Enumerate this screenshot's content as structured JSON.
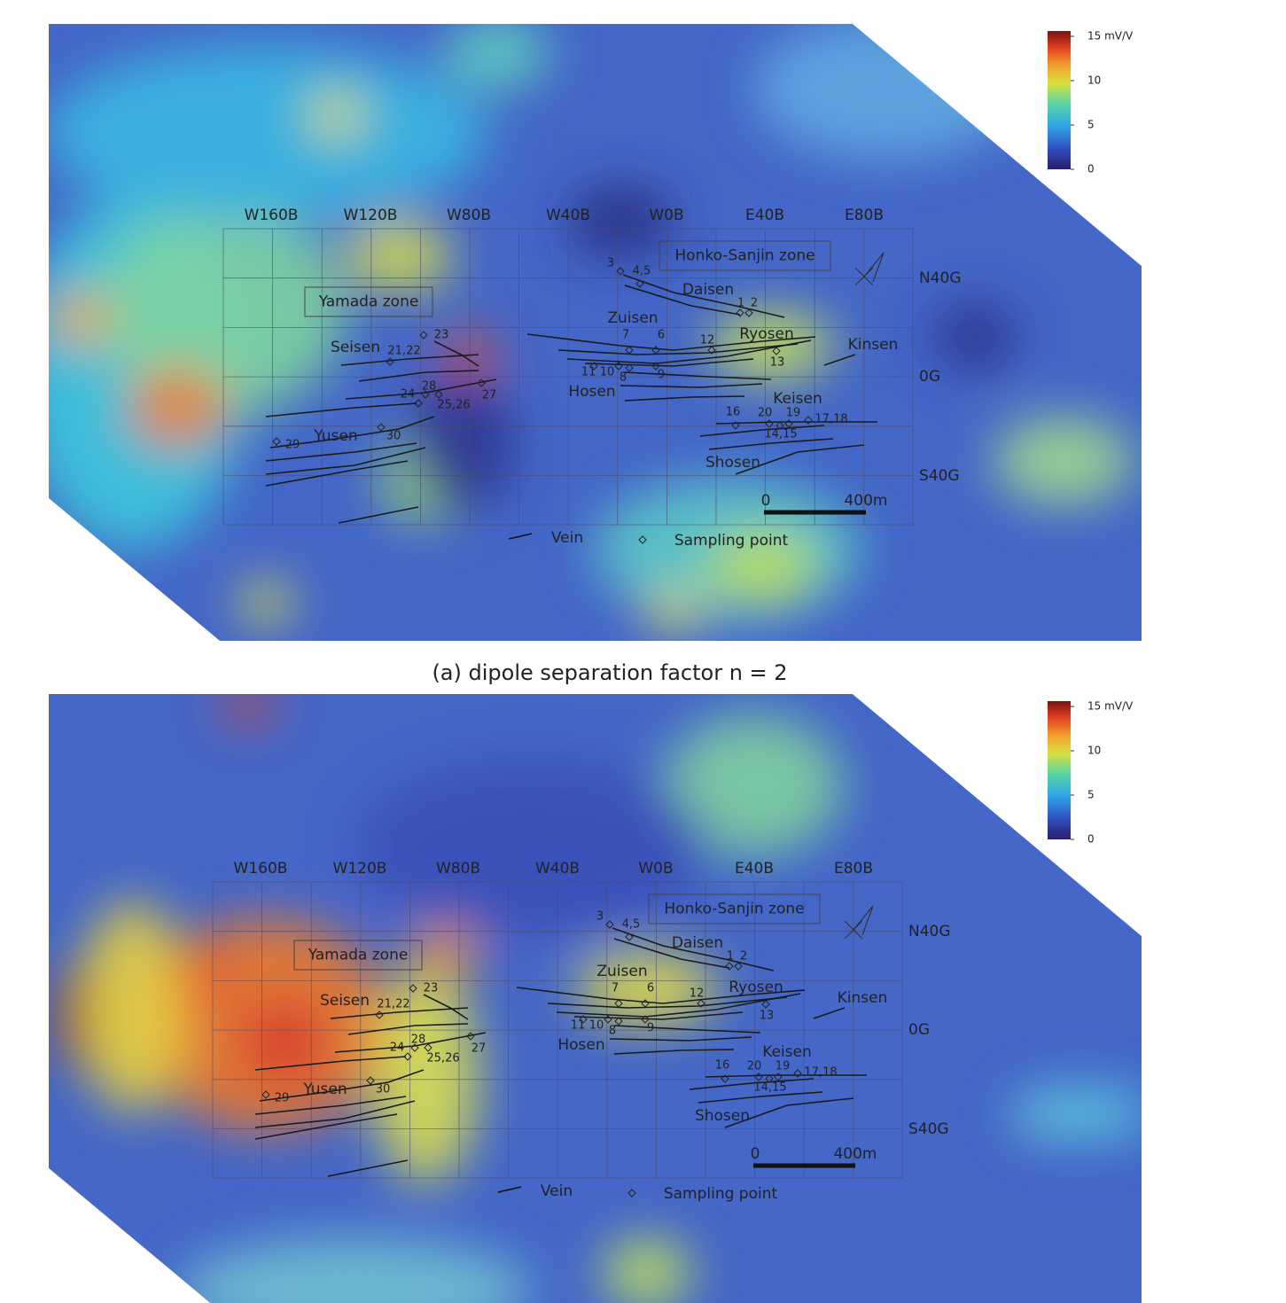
{
  "panels": [
    {
      "caption": "(a) dipole separation factor n = 2",
      "colorbar": {
        "lim": [
          0,
          15.6
        ],
        "ticks": [
          {
            "value": 15,
            "label": "15 mV/V"
          },
          10,
          5,
          0
        ]
      },
      "grid_columns": [
        "W160B",
        "W120B",
        "W80B",
        "W40B",
        "W0B",
        "E40B",
        "E80B"
      ],
      "grid_rows": [
        "N40G",
        "0G",
        "S40G"
      ],
      "zones": [
        "Honko-Sanjin zone",
        "Yamada zone"
      ],
      "veins": [
        "Daisen",
        "Zuisen",
        "Ryosen",
        "Kinsen",
        "Seisen",
        "Hosen",
        "Keisen",
        "Yusen",
        "Shosen"
      ],
      "sampling_points": [
        "3",
        "4,5",
        "1",
        "2",
        "7",
        "6",
        "12",
        "13",
        "11",
        "10",
        "8",
        "9",
        "23",
        "21,22",
        "24",
        "28",
        "25,26",
        "27",
        "16",
        "20",
        "19",
        "17,18",
        "14,15",
        "29",
        "30"
      ],
      "scale_bar": {
        "ticks": [
          0,
          {
            "value": 400,
            "label": "400m"
          }
        ]
      },
      "legend": [
        "Vein",
        "Sampling point"
      ]
    },
    {
      "colorbar": {
        "lim": [
          0,
          15.6
        ],
        "ticks": [
          {
            "value": 15,
            "label": "15 mV/V"
          },
          10,
          5,
          0
        ]
      },
      "grid_columns": [
        "W160B",
        "W120B",
        "W80B",
        "W40B",
        "W0B",
        "E40B",
        "E80B"
      ],
      "grid_rows": [
        "N40G",
        "0G",
        "S40G"
      ],
      "zones": [
        "Honko-Sanjin zone",
        "Yamada zone"
      ],
      "veins": [
        "Daisen",
        "Zuisen",
        "Ryosen",
        "Kinsen",
        "Seisen",
        "Hosen",
        "Keisen",
        "Yusen",
        "Shosen"
      ],
      "sampling_points": [
        "3",
        "4,5",
        "1",
        "2",
        "7",
        "6",
        "12",
        "13",
        "11",
        "10",
        "8",
        "9",
        "23",
        "21,22",
        "24",
        "28",
        "25,26",
        "27",
        "16",
        "20",
        "19",
        "17,18",
        "14,15",
        "29",
        "30"
      ],
      "scale_bar": {
        "ticks": [
          0,
          {
            "value": 400,
            "label": "400m"
          }
        ]
      },
      "legend": [
        "Vein",
        "Sampling point"
      ]
    }
  ]
}
